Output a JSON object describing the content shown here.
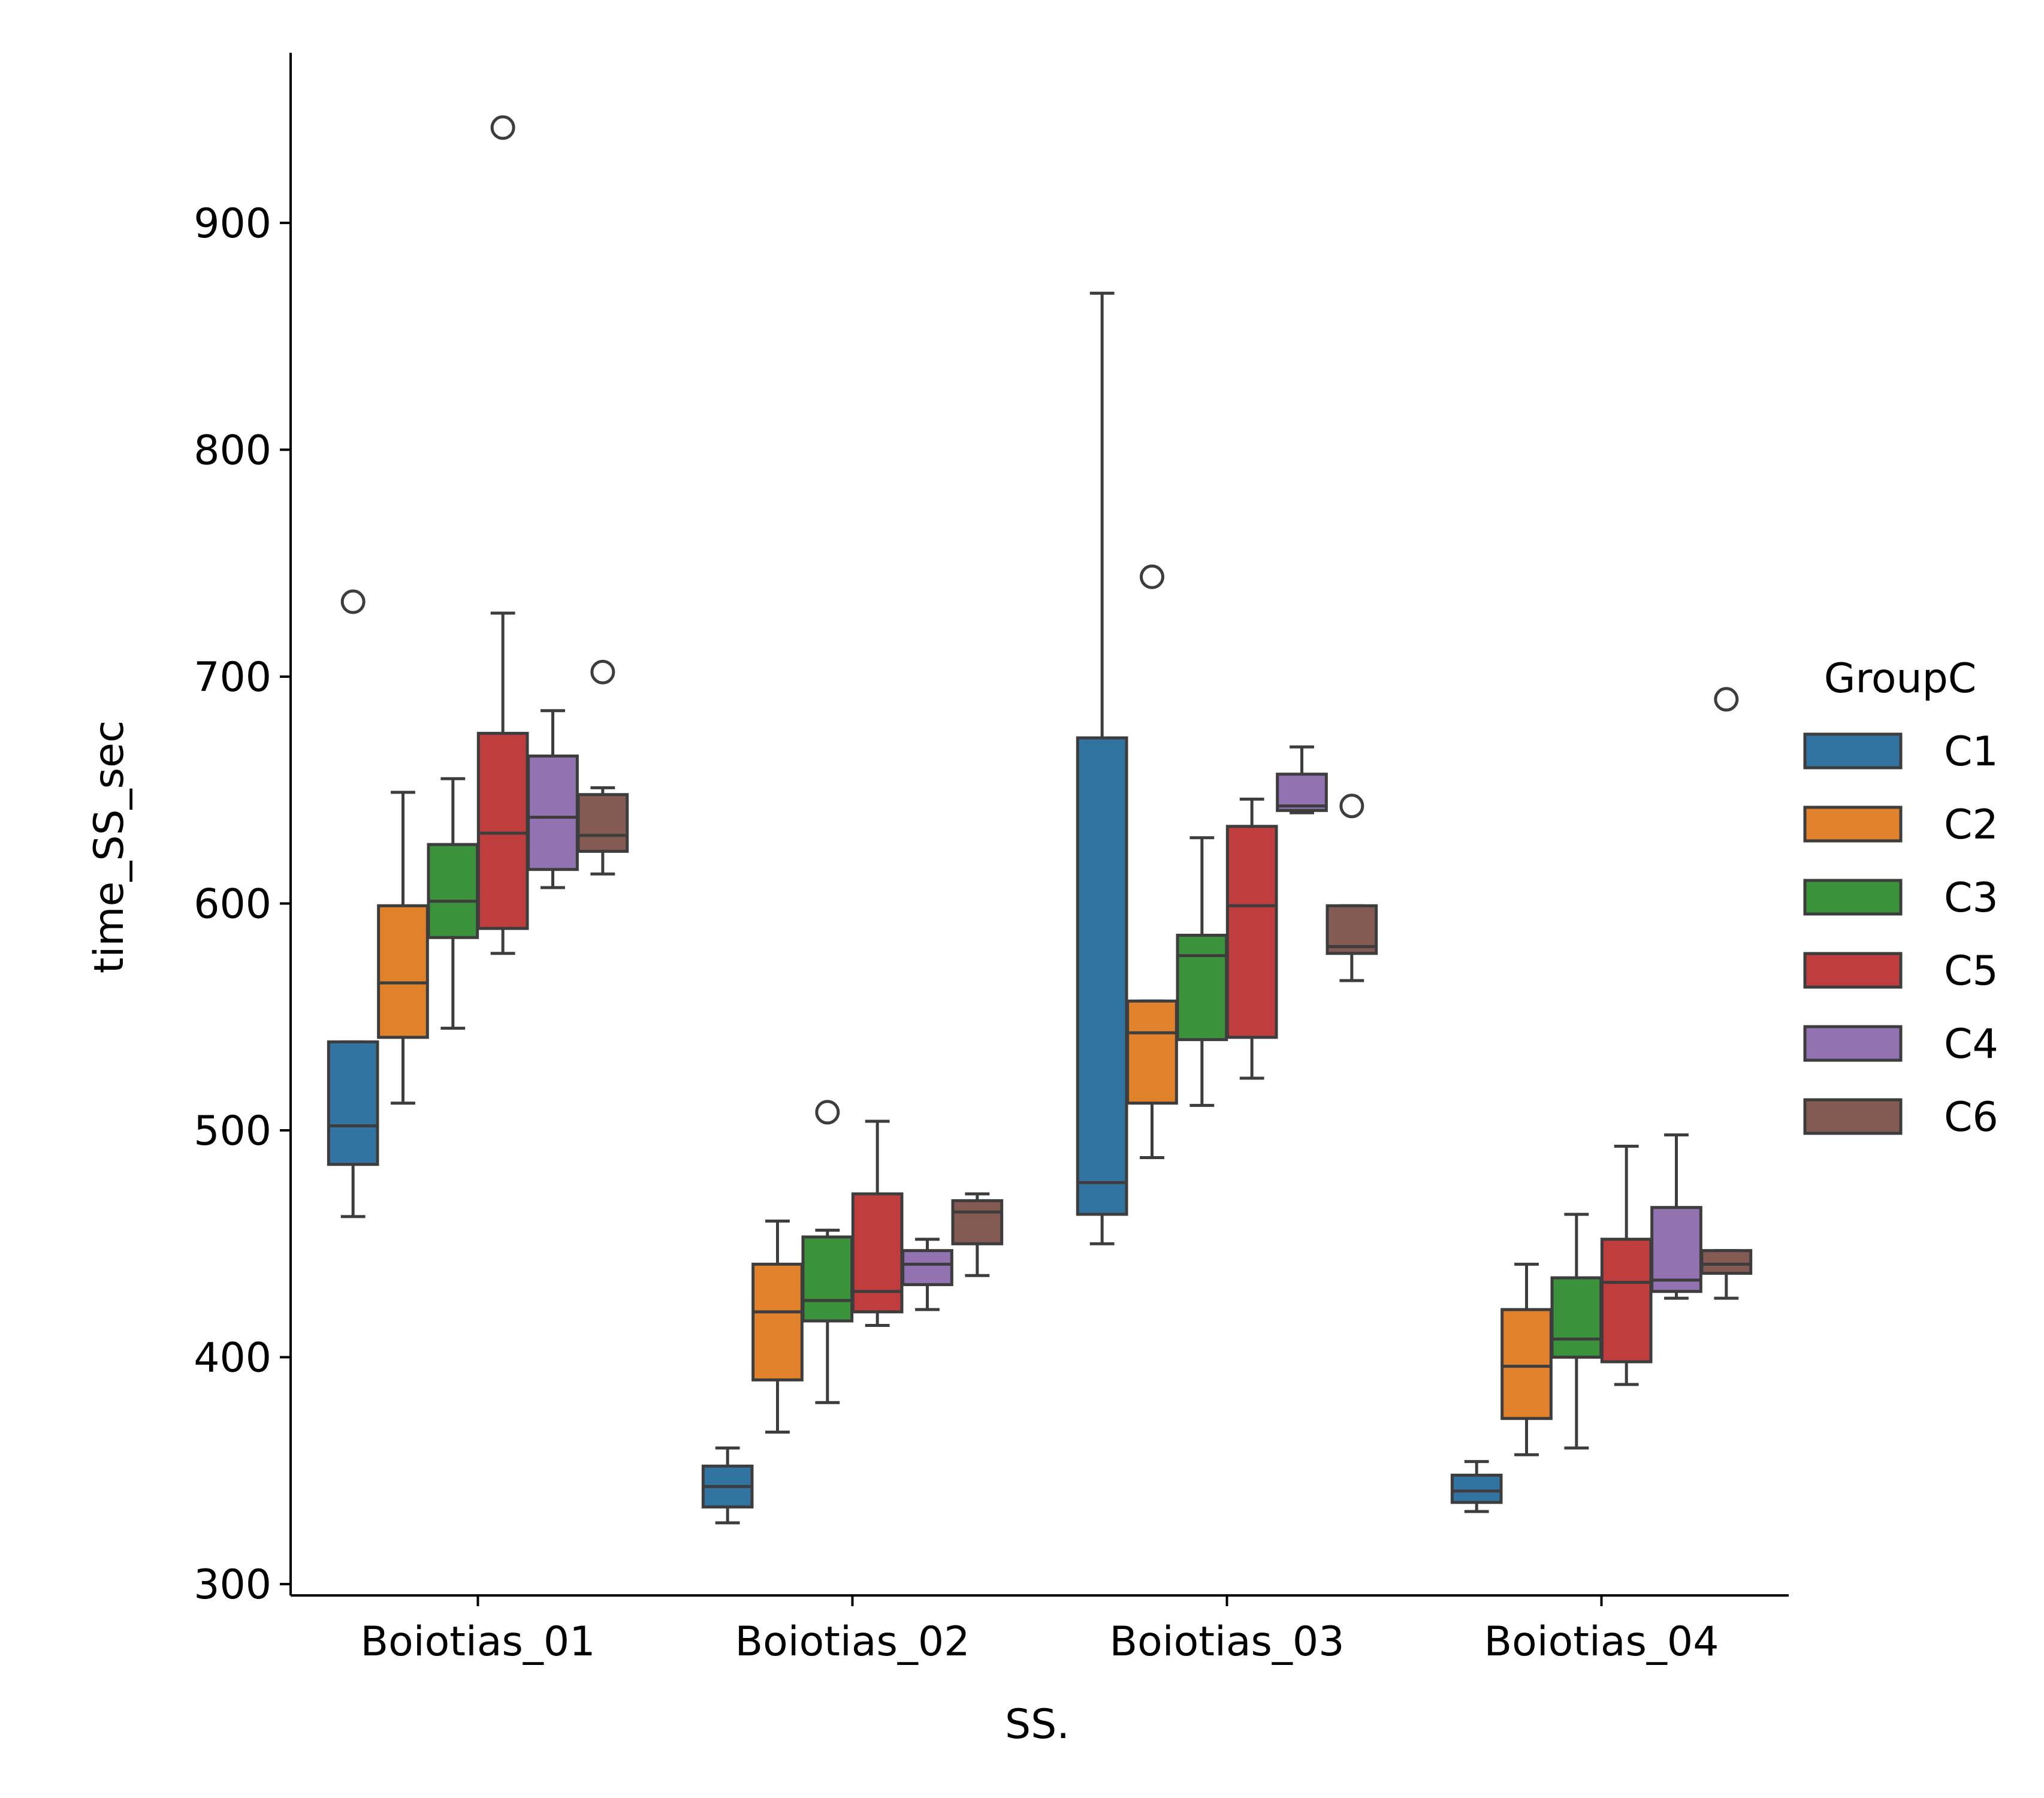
{
  "chart_data": {
    "type": "box",
    "title": "",
    "xlabel": "SS.",
    "ylabel": "time_SS_sec",
    "ylim": [
      295,
      975
    ],
    "yticks": [
      300,
      400,
      500,
      600,
      700,
      800,
      900
    ],
    "categories": [
      "Boiotias_01",
      "Boiotias_02",
      "Boiotias_03",
      "Boiotias_04"
    ],
    "legend": {
      "title": "GroupC",
      "position": "right"
    },
    "series": [
      {
        "name": "C1",
        "color": "#3274a1",
        "boxes": [
          {
            "whislo": 462,
            "q1": 485,
            "med": 502,
            "q3": 539,
            "whishi": 539,
            "fliers": [
              733
            ]
          },
          {
            "whislo": 327,
            "q1": 334,
            "med": 343,
            "q3": 352,
            "whishi": 360,
            "fliers": []
          },
          {
            "whislo": 450,
            "q1": 463,
            "med": 477,
            "q3": 673,
            "whishi": 869,
            "fliers": []
          },
          {
            "whislo": 332,
            "q1": 336,
            "med": 341,
            "q3": 348,
            "whishi": 354,
            "fliers": []
          }
        ]
      },
      {
        "name": "C2",
        "color": "#e1812c",
        "boxes": [
          {
            "whislo": 512,
            "q1": 541,
            "med": 565,
            "q3": 599,
            "whishi": 649,
            "fliers": []
          },
          {
            "whislo": 367,
            "q1": 390,
            "med": 420,
            "q3": 441,
            "whishi": 460,
            "fliers": []
          },
          {
            "whislo": 488,
            "q1": 512,
            "med": 543,
            "q3": 557,
            "whishi": 557,
            "fliers": [
              744
            ]
          },
          {
            "whislo": 357,
            "q1": 373,
            "med": 396,
            "q3": 421,
            "whishi": 441,
            "fliers": []
          }
        ]
      },
      {
        "name": "C3",
        "color": "#3a923a",
        "boxes": [
          {
            "whislo": 545,
            "q1": 585,
            "med": 601,
            "q3": 626,
            "whishi": 655,
            "fliers": []
          },
          {
            "whislo": 380,
            "q1": 416,
            "med": 425,
            "q3": 453,
            "whishi": 456,
            "fliers": [
              508
            ]
          },
          {
            "whislo": 511,
            "q1": 540,
            "med": 577,
            "q3": 586,
            "whishi": 629,
            "fliers": []
          },
          {
            "whislo": 360,
            "q1": 400,
            "med": 408,
            "q3": 435,
            "whishi": 463,
            "fliers": []
          }
        ]
      },
      {
        "name": "C5",
        "color": "#c03d3e",
        "boxes": [
          {
            "whislo": 578,
            "q1": 589,
            "med": 631,
            "q3": 675,
            "whishi": 728,
            "fliers": [
              942
            ]
          },
          {
            "whislo": 414,
            "q1": 420,
            "med": 429,
            "q3": 472,
            "whishi": 504,
            "fliers": []
          },
          {
            "whislo": 523,
            "q1": 541,
            "med": 599,
            "q3": 634,
            "whishi": 646,
            "fliers": []
          },
          {
            "whislo": 388,
            "q1": 398,
            "med": 433,
            "q3": 452,
            "whishi": 493,
            "fliers": []
          }
        ]
      },
      {
        "name": "C4",
        "color": "#9372b2",
        "boxes": [
          {
            "whislo": 607,
            "q1": 615,
            "med": 638,
            "q3": 665,
            "whishi": 685,
            "fliers": []
          },
          {
            "whislo": 421,
            "q1": 432,
            "med": 441,
            "q3": 447,
            "whishi": 452,
            "fliers": []
          },
          {
            "whislo": 640,
            "q1": 641,
            "med": 643,
            "q3": 657,
            "whishi": 669,
            "fliers": []
          },
          {
            "whislo": 426,
            "q1": 429,
            "med": 434,
            "q3": 466,
            "whishi": 498,
            "fliers": []
          }
        ]
      },
      {
        "name": "C6",
        "color": "#845b53",
        "boxes": [
          {
            "whislo": 613,
            "q1": 623,
            "med": 630,
            "q3": 648,
            "whishi": 651,
            "fliers": [
              702
            ]
          },
          {
            "whislo": 436,
            "q1": 450,
            "med": 464,
            "q3": 469,
            "whishi": 472,
            "fliers": []
          },
          {
            "whislo": 566,
            "q1": 578,
            "med": 581,
            "q3": 599,
            "whishi": 599,
            "fliers": [
              643
            ]
          },
          {
            "whislo": 426,
            "q1": 437,
            "med": 441,
            "q3": 447,
            "whishi": 447,
            "fliers": [
              690
            ]
          }
        ]
      }
    ]
  }
}
